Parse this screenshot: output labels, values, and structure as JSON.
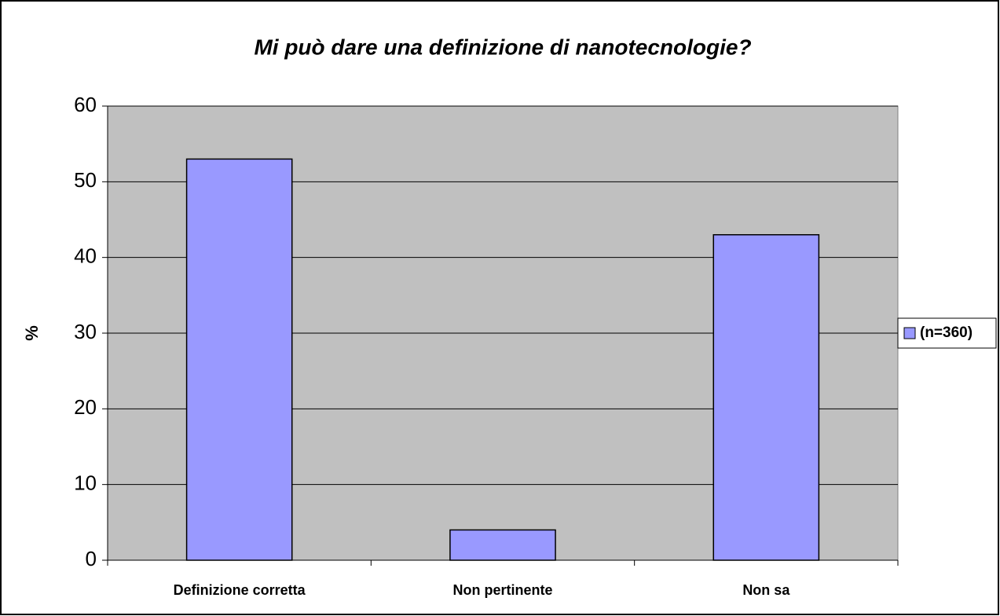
{
  "chart_data": {
    "type": "bar",
    "title": "Mi può dare una definizione di nanotecnologie?",
    "y_label": "%",
    "categories": [
      "Definizione corretta",
      "Non pertinente",
      "Non sa"
    ],
    "series": [
      {
        "name": "(n=360)",
        "color": "#9999ff",
        "values": [
          53,
          4,
          43
        ]
      }
    ],
    "ylim": [
      0,
      60
    ],
    "yticks": [
      0,
      10,
      20,
      30,
      40,
      50,
      60
    ],
    "grid": true,
    "legend": "right"
  }
}
